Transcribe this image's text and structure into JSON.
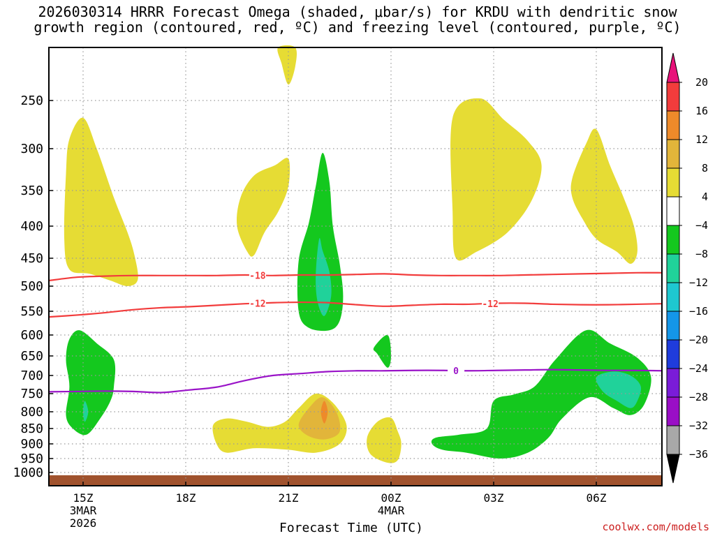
{
  "chart_data": {
    "type": "heatmap",
    "title_line1": "2026030314 HRRR Forecast Omega (shaded, μbar/s) for KRDU with dendritic snow",
    "title_line2": "growth region (contoured, red, ºC) and freezing level (contoured, purple, ºC)",
    "xlabel": "Forecast Time (UTC)",
    "credit": "coolwx.com/models",
    "y_ticks": [
      250,
      300,
      350,
      400,
      450,
      500,
      550,
      600,
      650,
      700,
      750,
      800,
      850,
      900,
      950,
      1000
    ],
    "y_tick_labels": [
      "250",
      "300",
      "350",
      "400",
      "450",
      "500",
      "550",
      "600",
      "650",
      "700",
      "750",
      "800",
      "850",
      "900",
      "950",
      "1000"
    ],
    "x_ticks": [
      {
        "hour": 1,
        "label": "15Z",
        "sub1": "3MAR",
        "sub2": "2026"
      },
      {
        "hour": 4,
        "label": "18Z",
        "sub1": "",
        "sub2": ""
      },
      {
        "hour": 7,
        "label": "21Z",
        "sub1": "",
        "sub2": ""
      },
      {
        "hour": 10,
        "label": "00Z",
        "sub1": "4MAR",
        "sub2": ""
      },
      {
        "hour": 13,
        "label": "03Z",
        "sub1": "",
        "sub2": ""
      },
      {
        "hour": 16,
        "label": "06Z",
        "sub1": "",
        "sub2": ""
      }
    ],
    "x_range_hours": [
      0,
      18
    ],
    "y_range_hpa": [
      200,
      1015
    ],
    "colorbar": {
      "levels": [
        "20",
        "16",
        "12",
        "8",
        "4",
        "−4",
        "−8",
        "−12",
        "−16",
        "−20",
        "−24",
        "−28",
        "−32",
        "−36"
      ],
      "colors": [
        "#e8127a",
        "#f23c3c",
        "#ee8a2a",
        "#e2b53a",
        "#e6dc34",
        "#ffffff",
        "#14c81e",
        "#20d29a",
        "#1ec8d0",
        "#1496e8",
        "#1f3cdc",
        "#7a1cd8",
        "#9a0ec6",
        "#a8a8a8",
        "#000000"
      ]
    },
    "contour_labels": {
      "dgz_upper": "-18",
      "dgz_lower": "-12",
      "freezing": "0"
    },
    "dgz_minus18_pressure": [
      490,
      484,
      482,
      481,
      481,
      481,
      481,
      480,
      481,
      480,
      480,
      479,
      478,
      480,
      481,
      481,
      481,
      480,
      479,
      478,
      477,
      476,
      476
    ],
    "dgz_minus12_pressure": [
      562,
      558,
      553,
      547,
      543,
      541,
      538,
      535,
      533,
      532,
      533,
      537,
      540,
      538,
      536,
      536,
      534,
      534,
      536,
      537,
      537,
      536,
      535
    ],
    "freezing_level_pressure": [
      745,
      744,
      743,
      744,
      747,
      740,
      732,
      714,
      700,
      695,
      690,
      688,
      688,
      687,
      687,
      688,
      687,
      686,
      685,
      686,
      687,
      687,
      688
    ],
    "omega_regions": [
      {
        "name": "yellow-pos-4-8",
        "color": "#e6dc34"
      },
      {
        "name": "orange-pos-8-12",
        "color": "#e2b53a"
      },
      {
        "name": "orange-pos-12-16",
        "color": "#ee8a2a"
      },
      {
        "name": "green-neg-4-8",
        "color": "#14c81e"
      },
      {
        "name": "teal-neg-8-12",
        "color": "#20d29a"
      }
    ],
    "ground_color": "#a0522d",
    "purple_color": "#9a14c8",
    "red_color": "#f23c3c"
  }
}
